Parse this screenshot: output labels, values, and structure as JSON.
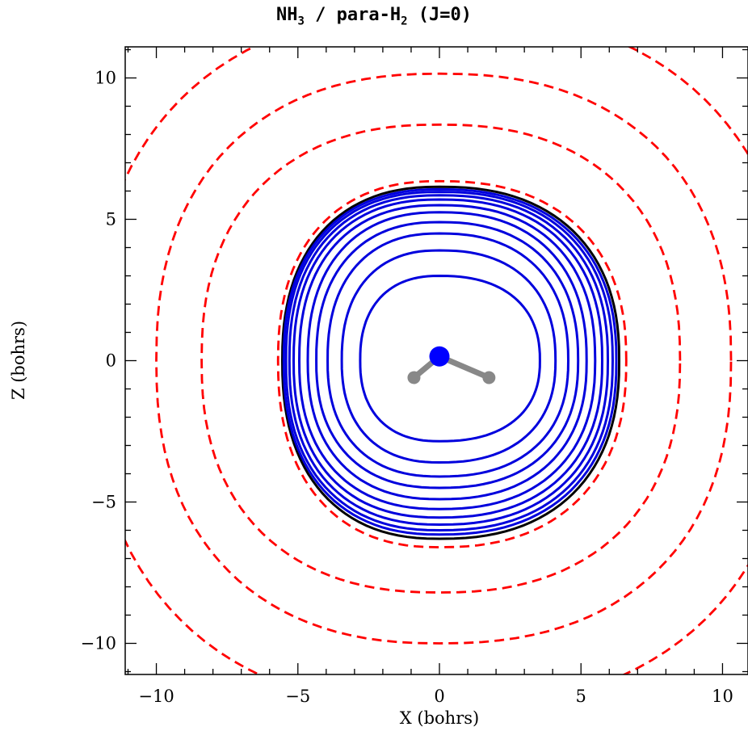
{
  "chart_data": {
    "type": "contour",
    "title": {
      "part1": "NH",
      "sub1": "3",
      "part2": " / para-H",
      "sub2": "2",
      "part3": " (J=0)"
    },
    "xlabel": "X (bohrs)",
    "ylabel": "Z (bohrs)",
    "xlim": [
      -11.1,
      10.9
    ],
    "ylim": [
      -11.1,
      11.1
    ],
    "xticks": [
      -10,
      -5,
      0,
      5,
      10
    ],
    "yticks": [
      -10,
      -5,
      0,
      5,
      10
    ],
    "xtick_labels": [
      "−10",
      "−5",
      "0",
      "5",
      "10"
    ],
    "ytick_labels": [
      "−10",
      "−5",
      "0",
      "5",
      "10"
    ],
    "minor_tick_step": 1,
    "grid": false,
    "series": [
      {
        "style": "dashed",
        "color": "#ff0000",
        "contours": [
          {
            "top": 6.35,
            "bottom": 6.6,
            "left": 5.7,
            "right": 6.6
          },
          {
            "top": 8.35,
            "bottom": 8.2,
            "left": 8.4,
            "right": 8.5
          },
          {
            "top": 10.15,
            "bottom": 10.0,
            "left": 10.0,
            "right": 10.3
          },
          {
            "top": 12.4,
            "bottom": 12.3,
            "left": 12.3,
            "right": 12.6
          }
        ]
      },
      {
        "style": "solid",
        "color": "#000000",
        "contours": [
          {
            "top": 6.15,
            "bottom": 6.3,
            "left": 5.55,
            "right": 6.35
          }
        ]
      },
      {
        "style": "solid",
        "color": "#0000dd",
        "contours": [
          {
            "top": 3.0,
            "bottom": 2.85,
            "left": 2.8,
            "right": 3.55
          },
          {
            "top": 3.9,
            "bottom": 3.6,
            "left": 3.45,
            "right": 4.1
          },
          {
            "top": 4.5,
            "bottom": 4.1,
            "left": 3.95,
            "right": 4.55
          },
          {
            "top": 4.9,
            "bottom": 4.5,
            "left": 4.35,
            "right": 4.9
          },
          {
            "top": 5.25,
            "bottom": 4.9,
            "left": 4.65,
            "right": 5.2
          },
          {
            "top": 5.5,
            "bottom": 5.25,
            "left": 4.95,
            "right": 5.5
          },
          {
            "top": 5.7,
            "bottom": 5.55,
            "left": 5.15,
            "right": 5.75
          },
          {
            "top": 5.85,
            "bottom": 5.8,
            "left": 5.3,
            "right": 5.95
          },
          {
            "top": 5.97,
            "bottom": 6.0,
            "left": 5.42,
            "right": 6.12
          },
          {
            "top": 6.06,
            "bottom": 6.15,
            "left": 5.5,
            "right": 6.25
          }
        ]
      }
    ],
    "molecule": {
      "center_atom": {
        "x": 0.0,
        "z": 0.15,
        "color": "#0000ff"
      },
      "side_atoms": [
        {
          "x": -0.9,
          "z": -0.6,
          "color": "#888888"
        },
        {
          "x": 1.75,
          "z": -0.6,
          "color": "#888888"
        }
      ],
      "bond_color": "#888888"
    }
  }
}
